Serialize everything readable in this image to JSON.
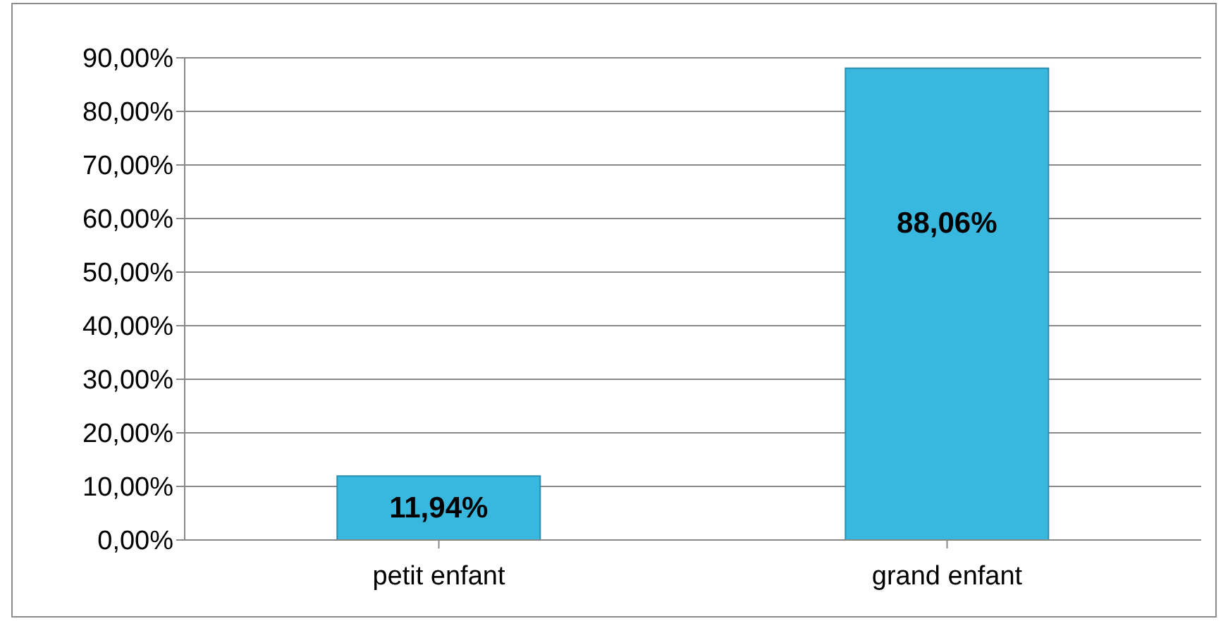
{
  "chart_data": {
    "type": "bar",
    "categories": [
      "petit enfant",
      "grand enfant"
    ],
    "values": [
      11.94,
      88.06
    ],
    "color": "#38b8de",
    "value_labels": [
      "11,94%",
      "88,06%"
    ],
    "ylim": [
      0,
      90
    ],
    "yticks": [
      {
        "value": 0,
        "label": "0,00%"
      },
      {
        "value": 10,
        "label": "10,00%"
      },
      {
        "value": 20,
        "label": "20,00%"
      },
      {
        "value": 30,
        "label": "30,00%"
      },
      {
        "value": 40,
        "label": "40,00%"
      },
      {
        "value": 50,
        "label": "50,00%"
      },
      {
        "value": 60,
        "label": "60,00%"
      },
      {
        "value": 70,
        "label": "70,00%"
      },
      {
        "value": 80,
        "label": "80,00%"
      },
      {
        "value": 90,
        "label": "90,00%"
      }
    ],
    "grid": "y",
    "legend": false
  }
}
